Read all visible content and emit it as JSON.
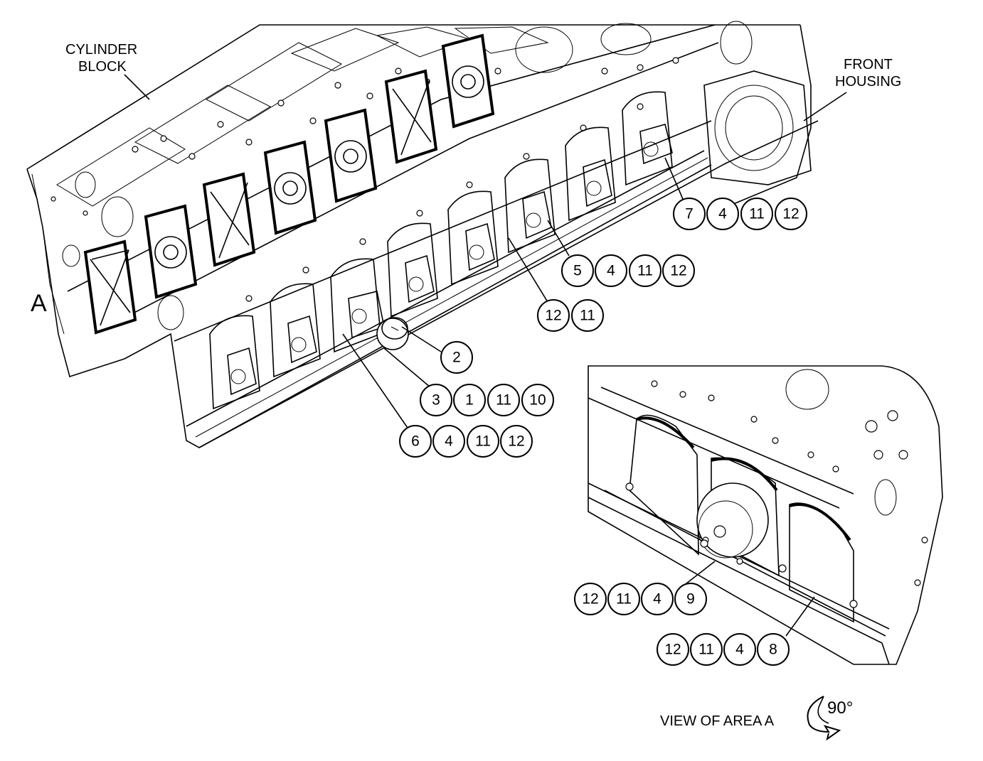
{
  "labels": {
    "cylinder_block_1": "CYLINDER",
    "cylinder_block_2": "BLOCK",
    "front_housing_1": "FRONT",
    "front_housing_2": "HOUSING",
    "area": "A",
    "view_caption": "VIEW OF AREA A",
    "rotation": "90°"
  },
  "callouts": {
    "g1": [
      "7",
      "4",
      "11",
      "12"
    ],
    "g2": [
      "5",
      "4",
      "11",
      "12"
    ],
    "g3": [
      "12",
      "11"
    ],
    "g4": [
      "2"
    ],
    "g5": [
      "3",
      "1",
      "11",
      "10"
    ],
    "g6": [
      "6",
      "4",
      "11",
      "12"
    ],
    "g7": [
      "12",
      "11",
      "4",
      "9"
    ],
    "g8": [
      "12",
      "11",
      "4",
      "8"
    ]
  }
}
